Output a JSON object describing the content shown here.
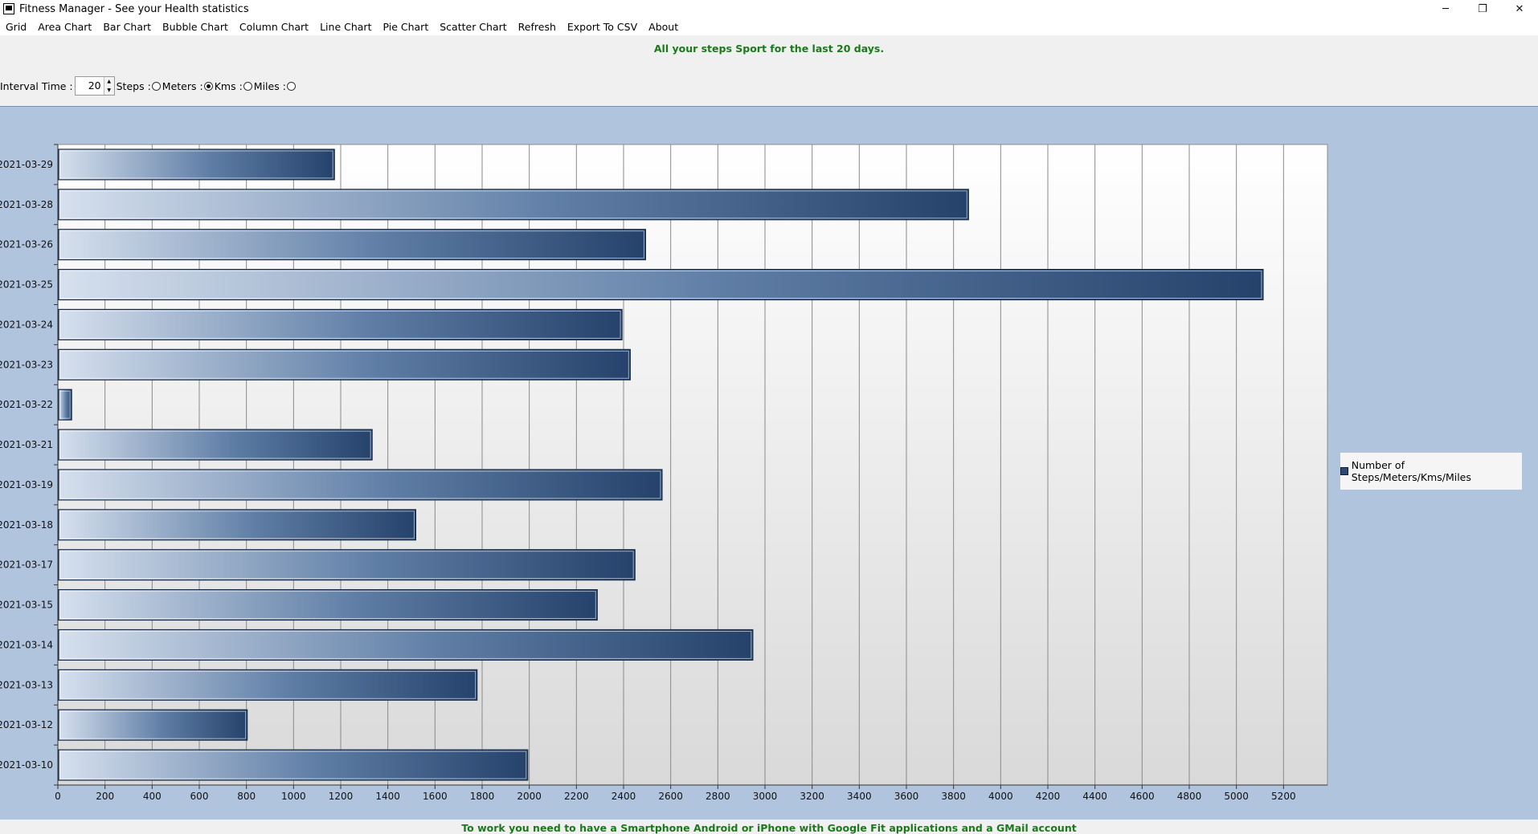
{
  "window": {
    "title": "Fitness Manager - See your Health statistics",
    "minimize": "─",
    "restore": "❐",
    "close": "✕"
  },
  "menu": {
    "items": [
      "Grid",
      "Area Chart",
      "Bar Chart",
      "Bubble Chart",
      "Column Chart",
      "Line Chart",
      "Pie Chart",
      "Scatter Chart",
      "Refresh",
      "Export To CSV",
      "About"
    ]
  },
  "header_message": "All your steps Sport for the last 20 days.",
  "controls": {
    "interval_label": "Interval Time :",
    "interval_value": "20",
    "steps_label": "Steps :",
    "meters_label": "Meters :",
    "kms_label": "Kms :",
    "miles_label": "Miles :",
    "selected_unit": "Meters"
  },
  "chart_data": {
    "type": "bar",
    "orientation": "horizontal",
    "categories": [
      "2021-03-29",
      "2021-03-28",
      "2021-03-26",
      "2021-03-25",
      "2021-03-24",
      "2021-03-23",
      "2021-03-22",
      "2021-03-21",
      "2021-03-19",
      "2021-03-18",
      "2021-03-17",
      "2021-03-15",
      "2021-03-14",
      "2021-03-13",
      "2021-03-12",
      "2021-03-10"
    ],
    "series": [
      {
        "name": "Number of Steps/Meters/Kms/Miles",
        "values": [
          1170,
          3860,
          2490,
          5110,
          2390,
          2425,
          55,
          1330,
          2560,
          1515,
          2445,
          2285,
          2945,
          1775,
          800,
          1990
        ]
      }
    ],
    "xlim": [
      0,
      5400
    ],
    "xticks": [
      0,
      200,
      400,
      600,
      800,
      1000,
      1200,
      1400,
      1600,
      1800,
      2000,
      2200,
      2400,
      2600,
      2800,
      3000,
      3200,
      3400,
      3600,
      3800,
      4000,
      4200,
      4400,
      4600,
      4800,
      5000,
      5200
    ],
    "grid": true,
    "legend_position": "right",
    "bar_color": "#2c4a74",
    "panel_color": "#b0c4de"
  },
  "footer_message": "To work you need to have a Smartphone Android or iPhone with Google Fit applications and a GMail account"
}
